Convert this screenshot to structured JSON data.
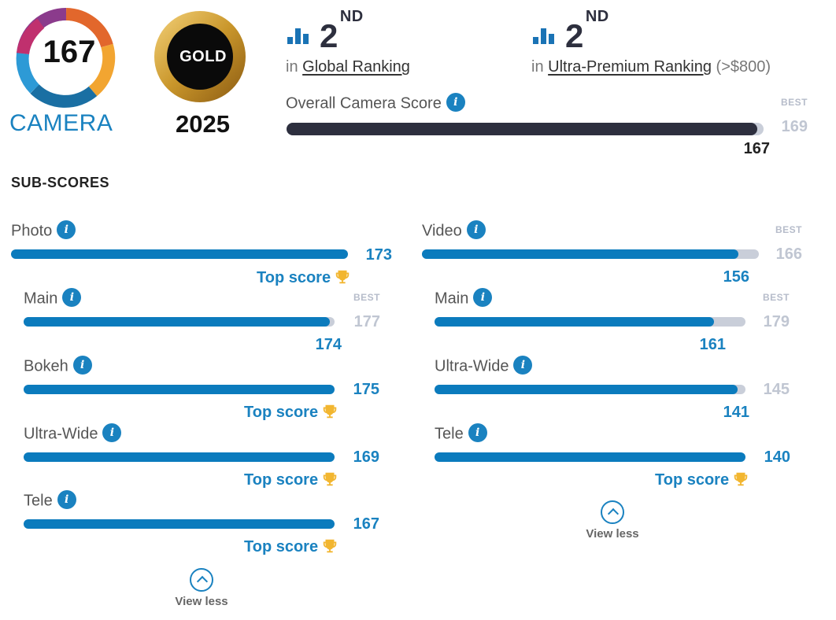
{
  "badge": {
    "score": "167",
    "category": "CAMERA",
    "award": "GOLD",
    "year": "2025"
  },
  "ranking": {
    "global": {
      "rank": "2",
      "suffix": "ND",
      "prefix": "in",
      "label": "Global Ranking"
    },
    "premium": {
      "rank": "2",
      "suffix": "ND",
      "prefix": "in",
      "label": "Ultra-Premium Ranking",
      "note": "(>$800)"
    }
  },
  "overall": {
    "label": "Overall Camera Score",
    "best_tag": "BEST",
    "best": "169",
    "score": "167",
    "fraction": 0.988
  },
  "subscores": {
    "title": "SUB-SCORES",
    "top_score_label": "Top score",
    "view_less": "View less",
    "best_tag": "BEST",
    "photo": {
      "label": "Photo",
      "score": "173",
      "items": [
        {
          "label": "Main",
          "score": "174",
          "best": "177"
        },
        {
          "label": "Bokeh",
          "score": "175"
        },
        {
          "label": "Ultra-Wide",
          "score": "169"
        },
        {
          "label": "Tele",
          "score": "167"
        }
      ]
    },
    "video": {
      "label": "Video",
      "score": "156",
      "best": "166",
      "items": [
        {
          "label": "Main",
          "score": "161",
          "best": "179"
        },
        {
          "label": "Ultra-Wide",
          "score": "141",
          "best": "145"
        },
        {
          "label": "Tele",
          "score": "140"
        }
      ]
    }
  },
  "colors": {
    "accent": "#1a82c0",
    "bar_fill": "#0b7bbd",
    "bar_dark": "#2d2f3e",
    "track": "#c9ced9",
    "trophy": "#f2b630"
  }
}
